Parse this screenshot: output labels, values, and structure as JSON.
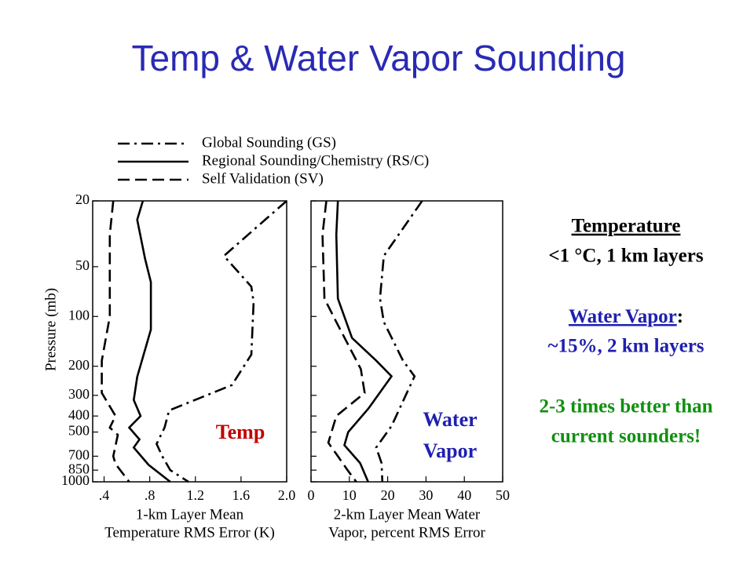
{
  "title": "Temp & Water Vapor Sounding",
  "notes": {
    "temperature": {
      "heading": "Temperature",
      "detail": "<1 °C, 1 km layers"
    },
    "water_vapor": {
      "heading": "Water Vapor",
      "colon": ":",
      "detail": "~15%, 2 km layers"
    },
    "summary": [
      "2-3 times better than",
      "current sounders!"
    ]
  },
  "chart_data": [
    {
      "type": "line",
      "ylabel": "Pressure (mb)",
      "xlabel": [
        "1-km Layer Mean",
        "Temperature RMS Error (K)"
      ],
      "annotation": [
        "Temp"
      ],
      "annotation_color": "#c00000",
      "xlim": [
        0.3,
        2.0
      ],
      "xticks": [
        {
          "value": 0.4,
          "label": ".4"
        },
        {
          "value": 0.8,
          "label": ".8"
        },
        1.2,
        1.6,
        {
          "value": 2.0,
          "label": "2.0"
        }
      ],
      "ylim": [
        1000,
        20
      ],
      "log_y": true,
      "yticks": [
        20,
        50,
        100,
        200,
        300,
        400,
        500,
        700,
        850,
        1000
      ],
      "series": [
        {
          "name": "Global Sounding (GS)",
          "color": "#000000",
          "dash": "dash-dot",
          "pressure": [
            20,
            43,
            66,
            82,
            170,
            260,
            370,
            470,
            590,
            700,
            850,
            1000
          ],
          "values": [
            2.0,
            1.45,
            1.69,
            1.71,
            1.69,
            1.52,
            0.97,
            0.93,
            0.86,
            0.91,
            0.98,
            1.14
          ]
        },
        {
          "name": "Regional Sounding/Chemistry (RS/C)",
          "color": "#000000",
          "dash": "solid",
          "pressure": [
            20,
            26,
            45,
            62,
            120,
            232,
            320,
            400,
            470,
            554,
            620,
            790,
            1000
          ],
          "values": [
            0.74,
            0.69,
            0.76,
            0.81,
            0.81,
            0.69,
            0.66,
            0.72,
            0.62,
            0.71,
            0.66,
            0.79,
            0.98
          ]
        },
        {
          "name": "Self Validation (SV)",
          "color": "#000000",
          "dash": "dash",
          "pressure": [
            20,
            32,
            100,
            185,
            290,
            400,
            470,
            520,
            700,
            780,
            1000
          ],
          "values": [
            0.48,
            0.45,
            0.45,
            0.38,
            0.38,
            0.5,
            0.45,
            0.52,
            0.48,
            0.5,
            0.62
          ]
        }
      ]
    },
    {
      "type": "line",
      "xlabel": [
        "2-km Layer Mean Water",
        "Vapor, percent RMS Error"
      ],
      "annotation": [
        "Water",
        "Vapor"
      ],
      "annotation_color": "#1f1fb0",
      "xlim": [
        0,
        50
      ],
      "xticks": [
        0,
        10,
        20,
        30,
        40,
        50
      ],
      "ylim": [
        1000,
        20
      ],
      "log_y": true,
      "yticks": [
        20,
        50,
        100,
        200,
        300,
        400,
        500,
        700,
        850,
        1000
      ],
      "series": [
        {
          "color": "#000000",
          "dash": "dash-dot",
          "pressure": [
            20,
            43,
            78,
            108,
            185,
            230,
            460,
            620,
            770,
            1000
          ],
          "values": [
            29,
            19,
            18,
            19,
            24,
            27,
            21,
            17,
            18.4,
            18.6
          ]
        },
        {
          "color": "#000000",
          "dash": "solid",
          "pressure": [
            20,
            32,
            78,
            135,
            185,
            230,
            360,
            500,
            600,
            770,
            1000
          ],
          "values": [
            7,
            6.6,
            7,
            10.7,
            17,
            21,
            15,
            9.7,
            8.7,
            12.8,
            14.9
          ]
        },
        {
          "color": "#000000",
          "dash": "dash",
          "pressure": [
            20,
            32,
            78,
            108,
            208,
            290,
            400,
            580,
            700,
            860,
            1000
          ],
          "values": [
            4,
            3,
            3.5,
            6.6,
            13,
            14,
            6.6,
            4.5,
            7,
            9.7,
            11.8
          ]
        }
      ]
    }
  ]
}
